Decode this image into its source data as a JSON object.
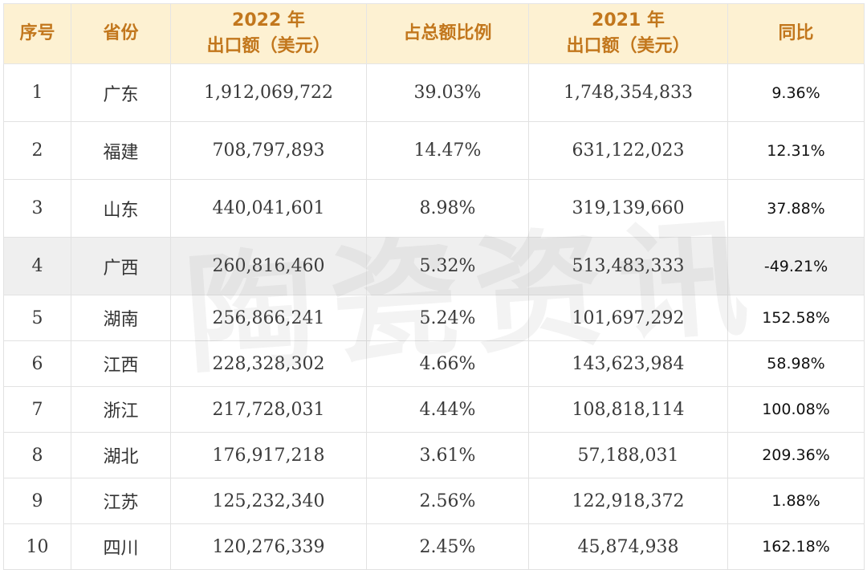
{
  "header": {
    "index": "序号",
    "province": "省份",
    "export_2022_line1": "2022 年",
    "export_2022_line2": "出口额（美元）",
    "share": "占总额比例",
    "export_2021_line1": "2021 年",
    "export_2021_line2": "出口额（美元）",
    "yoy": "同比"
  },
  "rows": [
    {
      "index": "1",
      "province": "广东",
      "export_2022": "1,912,069,722",
      "share": "39.03%",
      "export_2021": "1,748,354,833",
      "yoy": "9.36%"
    },
    {
      "index": "2",
      "province": "福建",
      "export_2022": "708,797,893",
      "share": "14.47%",
      "export_2021": "631,122,023",
      "yoy": "12.31%"
    },
    {
      "index": "3",
      "province": "山东",
      "export_2022": "440,041,601",
      "share": "8.98%",
      "export_2021": "319,139,660",
      "yoy": "37.88%"
    },
    {
      "index": "4",
      "province": "广西",
      "export_2022": "260,816,460",
      "share": "5.32%",
      "export_2021": "513,483,333",
      "yoy": "-49.21%"
    },
    {
      "index": "5",
      "province": "湖南",
      "export_2022": "256,866,241",
      "share": "5.24%",
      "export_2021": "101,697,292",
      "yoy": "152.58%"
    },
    {
      "index": "6",
      "province": "江西",
      "export_2022": "228,328,302",
      "share": "4.66%",
      "export_2021": "143,623,984",
      "yoy": "58.98%"
    },
    {
      "index": "7",
      "province": "浙江",
      "export_2022": "217,728,031",
      "share": "4.44%",
      "export_2021": "108,818,114",
      "yoy": "100.08%"
    },
    {
      "index": "8",
      "province": "湖北",
      "export_2022": "176,917,218",
      "share": "3.61%",
      "export_2021": "57,188,031",
      "yoy": "209.36%"
    },
    {
      "index": "9",
      "province": "江苏",
      "export_2022": "125,232,340",
      "share": "2.56%",
      "export_2021": "122,918,372",
      "yoy": "1.88%"
    },
    {
      "index": "10",
      "province": "四川",
      "export_2022": "120,276,339",
      "share": "2.45%",
      "export_2021": "45,874,938",
      "yoy": "162.18%"
    }
  ],
  "watermark": "陶瓷资讯",
  "colors": {
    "header_bg": "#fdf1d2",
    "header_text": "#c2771d",
    "highlight_row": "#efefef"
  }
}
